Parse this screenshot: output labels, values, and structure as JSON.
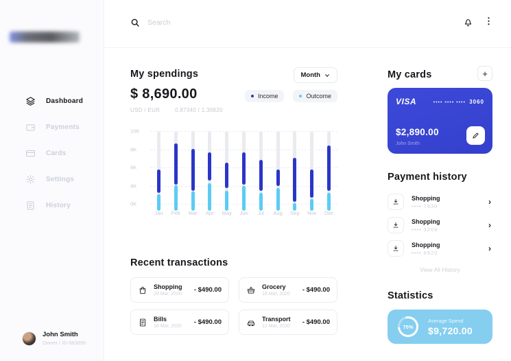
{
  "colors": {
    "income": "#2a35c9",
    "outcome": "#5bcbf5",
    "card_blue": "#3843d2",
    "stat_blue": "#85ceef",
    "track_grey": "#e9ebef"
  },
  "topbar": {
    "search_placeholder": "Search"
  },
  "sidebar": {
    "nav": [
      {
        "label": "Dashboard",
        "icon": "layers",
        "active": true
      },
      {
        "label": "Payments",
        "icon": "wallet",
        "active": false
      },
      {
        "label": "Cards",
        "icon": "credit-card",
        "active": false
      },
      {
        "label": "Settings",
        "icon": "gear",
        "active": false
      },
      {
        "label": "History",
        "icon": "document",
        "active": false
      }
    ],
    "user": {
      "name": "John Smith",
      "meta": "Owner / ID-983890"
    }
  },
  "spendings": {
    "title": "My spendings",
    "amount": "$ 8,690.00",
    "rates_label": "USD / EUR",
    "rates_value": "0,87340 / 1,39820",
    "period": "Month",
    "legend": [
      {
        "label": "Income",
        "color": "#2a35c9"
      },
      {
        "label": "Outcome",
        "color": "#5bcbf5"
      }
    ]
  },
  "chart_data": {
    "type": "bar",
    "title": "My spendings",
    "ylabel": "",
    "xlabel": "",
    "yticks": [
      0,
      4,
      6,
      8,
      10
    ],
    "ytick_labels": [
      "0K",
      "4K",
      "6K",
      "8K",
      "10K"
    ],
    "categories": [
      "Jan",
      "Feb",
      "Mar",
      "Apr",
      "May",
      "Jun",
      "Jul",
      "Aug",
      "Sep",
      "Nov",
      "Dec"
    ],
    "series": [
      {
        "name": "Income",
        "ranges_k": [
          [
            3.9,
            6.5
          ],
          [
            4.9,
            9.4
          ],
          [
            4.2,
            8.8
          ],
          [
            5.3,
            8.4
          ],
          [
            4.5,
            7.3
          ],
          [
            4.9,
            8.4
          ],
          [
            4.2,
            7.6
          ],
          [
            4.7,
            6.5
          ],
          [
            2.0,
            7.8
          ],
          [
            2.9,
            6.5
          ],
          [
            4.2,
            9.2
          ]
        ]
      },
      {
        "name": "Outcome",
        "values_k": [
          3.6,
          4.8,
          4.1,
          5.0,
          4.2,
          4.7,
          4.0,
          4.5,
          1.6,
          2.6,
          4.0
        ]
      }
    ],
    "grid": "dashed horizontal",
    "legend_position": "top-right"
  },
  "transactions": {
    "title": "Recent transactions",
    "items": [
      {
        "name": "Shopping",
        "date": "20 Mar, 2020",
        "amount": "- $490.00",
        "icon": "bag"
      },
      {
        "name": "Grocery",
        "date": "16 Mar, 2020",
        "amount": "- $490.00",
        "icon": "basket"
      },
      {
        "name": "Bills",
        "date": "18 Mar, 2020",
        "amount": "- $490.00",
        "icon": "receipt"
      },
      {
        "name": "Transport",
        "date": "12 Mar, 2020",
        "amount": "- $490.00",
        "icon": "car"
      }
    ]
  },
  "cards": {
    "title": "My cards",
    "add_label": "+",
    "card": {
      "brand": "VISA",
      "mask": "•••• •••• ••••",
      "last4": "3060",
      "balance": "$2,890.00",
      "holder": "John Smith"
    }
  },
  "payment_history": {
    "title": "Payment history",
    "items": [
      {
        "name": "Shopping",
        "mask": "•••• 7930"
      },
      {
        "name": "Shopping",
        "mask": "•••• 3209"
      },
      {
        "name": "Shopping",
        "mask": "•••• 6920"
      }
    ],
    "view_all": "View All History"
  },
  "statistics": {
    "title": "Statistics",
    "percent": "75%",
    "percent_value": 75,
    "label": "Average Spend",
    "amount": "$9,720.00"
  }
}
